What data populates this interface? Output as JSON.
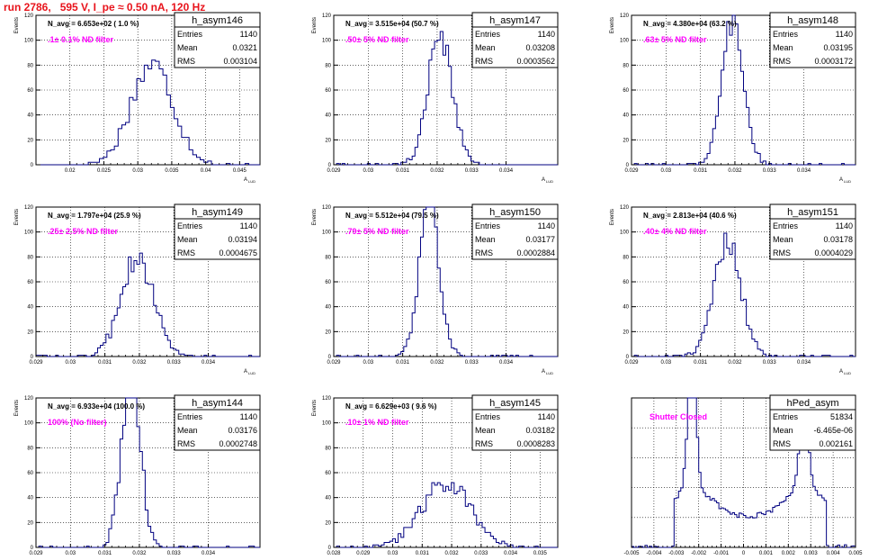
{
  "title": "run 2786,   595 V, I_pe ≈ 0.50 nA, 120 Hz",
  "colors": {
    "histogram": "#000080",
    "title": "#e8141c",
    "annotation": "#ff00ff",
    "grid": "#000000",
    "text": "#000000"
  },
  "chart_data": [
    {
      "type": "bar",
      "name": "h_asym146",
      "stats": {
        "entries_label": "Entries",
        "entries": "1140",
        "mean_label": "Mean",
        "mean": "0.0321",
        "rms_label": "RMS",
        "rms": "0.003104"
      },
      "n_avg": "N_avg = 6.653e+02 ( 1.0 %)",
      "annotation": ".1± 0.1% ND filter",
      "ylabel": "Events",
      "xlabel": "A",
      "xlabel_sub": "LUD",
      "xlim": [
        0.015,
        0.048
      ],
      "ylim": [
        0,
        120
      ],
      "xticks": [
        0.02,
        0.025,
        0.03,
        0.035,
        0.04,
        0.045
      ],
      "xtick_labels": [
        "0.02",
        "0.025",
        "0.03",
        "0.035",
        "0.04",
        "0.045"
      ],
      "yticks": [
        0,
        20,
        40,
        60,
        80,
        100,
        120
      ],
      "ytick_labels": [
        "0",
        "20",
        "40",
        "60",
        "80",
        "100",
        "120"
      ],
      "grid": true,
      "hist": {
        "mean": 0.0321,
        "rms": 0.003104,
        "count": 1140,
        "bins": 60
      }
    },
    {
      "type": "bar",
      "name": "h_asym147",
      "stats": {
        "entries_label": "Entries",
        "entries": "1140",
        "mean_label": "Mean",
        "mean": "0.03208",
        "rms_label": "RMS",
        "rms": "0.0003562"
      },
      "n_avg": "N_avg = 3.515e+04 (50.7 %)",
      "annotation": ".50± 5% ND filter",
      "ylabel": "Events",
      "xlabel": "A",
      "xlabel_sub": "LUD",
      "xlim": [
        0.029,
        0.0355
      ],
      "ylim": [
        0,
        120
      ],
      "xticks": [
        0.029,
        0.03,
        0.031,
        0.032,
        0.033,
        0.034
      ],
      "xtick_labels": [
        "0.029",
        "0.03",
        "0.031",
        "0.032",
        "0.033",
        "0.034"
      ],
      "yticks": [
        0,
        20,
        40,
        60,
        80,
        100,
        120
      ],
      "ytick_labels": [
        "0",
        "20",
        "40",
        "60",
        "80",
        "100",
        "120"
      ],
      "grid": true,
      "hist": {
        "mean": 0.03208,
        "rms": 0.0003562,
        "count": 1140,
        "bins": 80
      }
    },
    {
      "type": "bar",
      "name": "h_asym148",
      "stats": {
        "entries_label": "Entries",
        "entries": "1140",
        "mean_label": "Mean",
        "mean": "0.03195",
        "rms_label": "RMS",
        "rms": "0.0003172"
      },
      "n_avg": "N_avg = 4.380e+04 (63.2 %)",
      "annotation": ".63± 5% ND filter",
      "ylabel": "Events",
      "xlabel": "A",
      "xlabel_sub": "LUD",
      "xlim": [
        0.029,
        0.0355
      ],
      "ylim": [
        0,
        120
      ],
      "xticks": [
        0.029,
        0.03,
        0.031,
        0.032,
        0.033,
        0.034
      ],
      "xtick_labels": [
        "0.029",
        "0.03",
        "0.031",
        "0.032",
        "0.033",
        "0.034"
      ],
      "yticks": [
        0,
        20,
        40,
        60,
        80,
        100,
        120
      ],
      "ytick_labels": [
        "0",
        "20",
        "40",
        "60",
        "80",
        "100",
        "120"
      ],
      "grid": true,
      "hist": {
        "mean": 0.03195,
        "rms": 0.0003172,
        "count": 1140,
        "bins": 80
      }
    },
    {
      "type": "bar",
      "name": "h_asym149",
      "stats": {
        "entries_label": "Entries",
        "entries": "1140",
        "mean_label": "Mean",
        "mean": "0.03194",
        "rms_label": "RMS",
        "rms": "0.0004675"
      },
      "n_avg": "N_avg = 1.797e+04 (25.9 %)",
      "annotation": ".25± 2.5% ND filter",
      "ylabel": "Events",
      "xlabel": "A",
      "xlabel_sub": "LUD",
      "xlim": [
        0.029,
        0.0355
      ],
      "ylim": [
        0,
        120
      ],
      "xticks": [
        0.029,
        0.03,
        0.031,
        0.032,
        0.033,
        0.034
      ],
      "xtick_labels": [
        "0.029",
        "0.03",
        "0.031",
        "0.032",
        "0.033",
        "0.034"
      ],
      "yticks": [
        0,
        20,
        40,
        60,
        80,
        100,
        120
      ],
      "ytick_labels": [
        "0",
        "20",
        "40",
        "60",
        "80",
        "100",
        "120"
      ],
      "grid": true,
      "hist": {
        "mean": 0.03194,
        "rms": 0.0004675,
        "count": 1140,
        "bins": 80
      }
    },
    {
      "type": "bar",
      "name": "h_asym150",
      "stats": {
        "entries_label": "Entries",
        "entries": "1140",
        "mean_label": "Mean",
        "mean": "0.03177",
        "rms_label": "RMS",
        "rms": "0.0002884"
      },
      "n_avg": "N_avg = 5.512e+04 (79.5 %)",
      "annotation": ".79± 5% ND filter",
      "ylabel": "Events",
      "xlabel": "A",
      "xlabel_sub": "LUD",
      "xlim": [
        0.029,
        0.0355
      ],
      "ylim": [
        0,
        120
      ],
      "xticks": [
        0.029,
        0.03,
        0.031,
        0.032,
        0.033,
        0.034
      ],
      "xtick_labels": [
        "0.029",
        "0.03",
        "0.031",
        "0.032",
        "0.033",
        "0.034"
      ],
      "yticks": [
        0,
        20,
        40,
        60,
        80,
        100,
        120
      ],
      "ytick_labels": [
        "0",
        "20",
        "40",
        "60",
        "80",
        "100",
        "120"
      ],
      "grid": true,
      "hist": {
        "mean": 0.03177,
        "rms": 0.0002884,
        "count": 1140,
        "bins": 80
      }
    },
    {
      "type": "bar",
      "name": "h_asym151",
      "stats": {
        "entries_label": "Entries",
        "entries": "1140",
        "mean_label": "Mean",
        "mean": "0.03178",
        "rms_label": "RMS",
        "rms": "0.0004029"
      },
      "n_avg": "N_avg = 2.813e+04 (40.6 %)",
      "annotation": ".40± 4% ND filter",
      "ylabel": "Events",
      "xlabel": "A",
      "xlabel_sub": "LUD",
      "xlim": [
        0.029,
        0.0355
      ],
      "ylim": [
        0,
        120
      ],
      "xticks": [
        0.029,
        0.03,
        0.031,
        0.032,
        0.033,
        0.034
      ],
      "xtick_labels": [
        "0.029",
        "0.03",
        "0.031",
        "0.032",
        "0.033",
        "0.034"
      ],
      "yticks": [
        0,
        20,
        40,
        60,
        80,
        100,
        120
      ],
      "ytick_labels": [
        "0",
        "20",
        "40",
        "60",
        "80",
        "100",
        "120"
      ],
      "grid": true,
      "hist": {
        "mean": 0.03178,
        "rms": 0.0004029,
        "count": 1140,
        "bins": 80
      }
    },
    {
      "type": "bar",
      "name": "h_asym144",
      "stats": {
        "entries_label": "Entries",
        "entries": "1140",
        "mean_label": "Mean",
        "mean": "0.03176",
        "rms_label": "RMS",
        "rms": "0.0002748"
      },
      "n_avg": "N_avg = 6.933e+04 (100.0 %)",
      "annotation": "100% (No filter)",
      "ylabel": "Events",
      "xlabel": "A",
      "xlabel_sub": "LUD",
      "xlim": [
        0.029,
        0.0355
      ],
      "ylim": [
        0,
        120
      ],
      "xticks": [
        0.029,
        0.03,
        0.031,
        0.032,
        0.033,
        0.034
      ],
      "xtick_labels": [
        "0.029",
        "0.03",
        "0.031",
        "0.032",
        "0.033",
        "0.034"
      ],
      "yticks": [
        0,
        20,
        40,
        60,
        80,
        100,
        120
      ],
      "ytick_labels": [
        "0",
        "20",
        "40",
        "60",
        "80",
        "100",
        "120"
      ],
      "grid": true,
      "hist": {
        "mean": 0.03176,
        "rms": 0.0002748,
        "count": 1140,
        "bins": 80
      }
    },
    {
      "type": "bar",
      "name": "h_asym145",
      "stats": {
        "entries_label": "Entries",
        "entries": "1140",
        "mean_label": "Mean",
        "mean": "0.03182",
        "rms_label": "RMS",
        "rms": "0.0008283"
      },
      "n_avg": "N_avg = 6.629e+03 ( 9.6 %)",
      "annotation": ".10± 1% ND filter",
      "ylabel": "Events",
      "xlabel": "A",
      "xlabel_sub": "LUD",
      "xlim": [
        0.028,
        0.0356
      ],
      "ylim": [
        0,
        120
      ],
      "xticks": [
        0.028,
        0.029,
        0.03,
        0.031,
        0.032,
        0.033,
        0.034,
        0.035
      ],
      "xtick_labels": [
        "0.028",
        "0.029",
        "0.03",
        "0.031",
        "0.032",
        "0.033",
        "0.034",
        "0.035"
      ],
      "yticks": [
        0,
        20,
        40,
        60,
        80,
        100,
        120
      ],
      "ytick_labels": [
        "0",
        "20",
        "40",
        "60",
        "80",
        "100",
        "120"
      ],
      "grid": true,
      "hist": {
        "mean": 0.03182,
        "rms": 0.0008283,
        "count": 1140,
        "bins": 80
      }
    },
    {
      "type": "bar",
      "name": "hPed_asym",
      "stats": {
        "entries_label": "Entries",
        "entries": "51834",
        "mean_label": "Mean",
        "mean": "-6.465e-06",
        "rms_label": "RMS",
        "rms": "0.002161"
      },
      "n_avg": "",
      "annotation": "Shutter Closed",
      "ylabel": "",
      "xlabel": "",
      "xlabel_sub": "",
      "xlim": [
        -0.005,
        0.005
      ],
      "ylim": [
        0,
        2600
      ],
      "xticks": [
        -0.005,
        -0.004,
        -0.003,
        -0.002,
        -0.001,
        0,
        0.001,
        0.002,
        0.003,
        0.004,
        0.005
      ],
      "xtick_labels": [
        "-0.005",
        "-0.004",
        "-0.003",
        "-0.002",
        "-0.001",
        "0",
        "0.001",
        "0.002",
        "0.003",
        "0.004",
        "0.005"
      ],
      "yticks": [],
      "ytick_labels": [],
      "grid": true,
      "hist": {
        "bins": 100,
        "mode": "pedestal",
        "peaks": [
          {
            "center": -0.0023,
            "height": 2400
          },
          {
            "center": 0.0027,
            "height": 1650
          }
        ],
        "baseline": 520
      }
    }
  ]
}
